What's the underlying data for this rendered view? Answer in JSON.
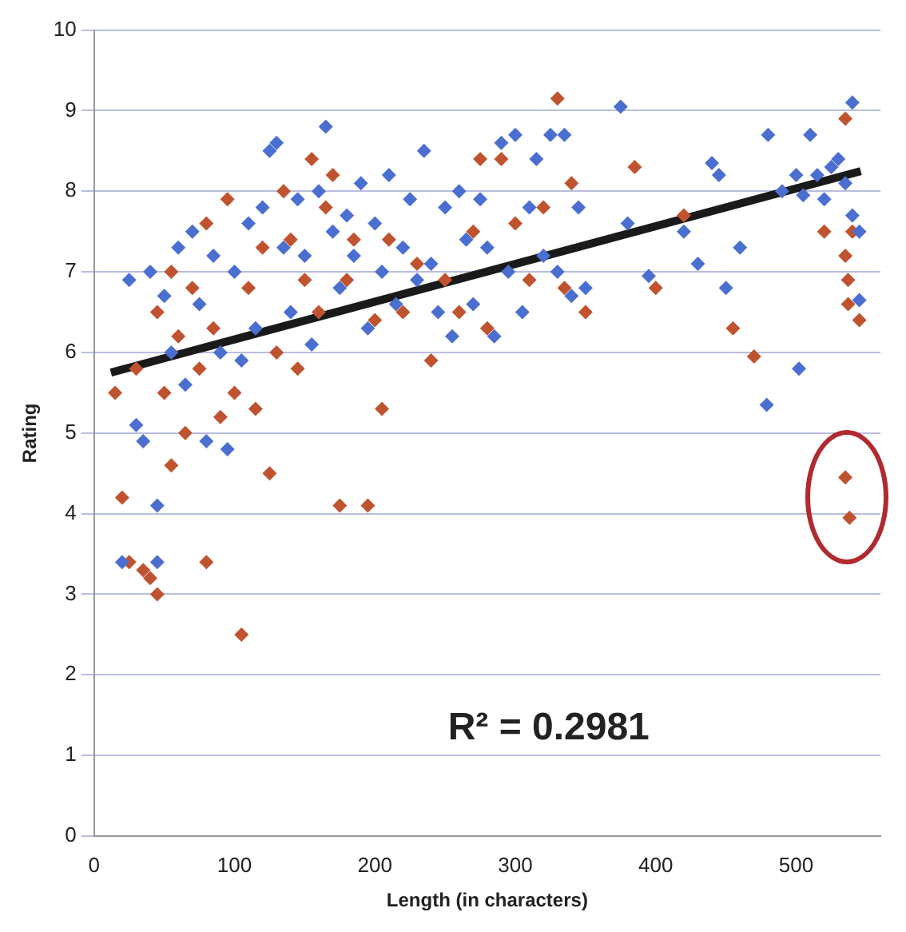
{
  "chart_data": {
    "type": "scatter",
    "xlabel": "Length (in characters)",
    "ylabel": "Rating",
    "xlim": [
      0,
      560
    ],
    "xticks": [
      0,
      100,
      200,
      300,
      400,
      500
    ],
    "ylim": [
      0,
      10
    ],
    "yticks": [
      0,
      1,
      2,
      3,
      4,
      5,
      6,
      7,
      8,
      9,
      10
    ],
    "grid": "y",
    "marker": "diamond",
    "annotations": [
      "R² = 0.2981"
    ],
    "series": [
      {
        "color": "#4a6fd0",
        "x": [
          20,
          25,
          30,
          35,
          40,
          45,
          45,
          50,
          55,
          60,
          65,
          70,
          75,
          80,
          85,
          90,
          95,
          100,
          105,
          110,
          115,
          120,
          125,
          130,
          135,
          140,
          145,
          150,
          155,
          160,
          165,
          170,
          175,
          180,
          185,
          190,
          195,
          200,
          205,
          210,
          215,
          220,
          225,
          230,
          235,
          240,
          245,
          250,
          255,
          260,
          265,
          270,
          275,
          280,
          285,
          290,
          295,
          300,
          305,
          310,
          315,
          320,
          325,
          330,
          335,
          340,
          345,
          350,
          375,
          380,
          395,
          420,
          430,
          440,
          445,
          450,
          479,
          460,
          480,
          490,
          502,
          500,
          510,
          515,
          520,
          525,
          530,
          535,
          540,
          540,
          545,
          545,
          505
        ],
        "values": [
          3.4,
          6.9,
          5.1,
          4.9,
          7.0,
          4.1,
          3.4,
          6.7,
          6.0,
          7.3,
          5.6,
          7.5,
          6.6,
          4.9,
          7.2,
          6.0,
          4.8,
          7.0,
          5.9,
          7.6,
          6.3,
          7.8,
          8.5,
          8.6,
          7.3,
          6.5,
          7.9,
          7.2,
          6.1,
          8.0,
          8.8,
          7.5,
          6.8,
          7.7,
          7.2,
          8.1,
          6.3,
          7.6,
          7.0,
          8.2,
          6.6,
          7.3,
          7.9,
          6.9,
          8.5,
          7.1,
          6.5,
          7.8,
          6.2,
          8.0,
          7.4,
          6.6,
          7.9,
          7.3,
          6.2,
          8.6,
          7.0,
          8.7,
          6.5,
          7.8,
          8.4,
          7.2,
          8.7,
          7.0,
          8.7,
          6.7,
          7.8,
          6.8,
          9.05,
          7.6,
          6.95,
          7.5,
          7.1,
          8.35,
          8.2,
          6.8,
          5.35,
          7.3,
          8.7,
          8.0,
          5.8,
          8.2,
          8.7,
          8.2,
          7.9,
          8.3,
          8.4,
          8.1,
          9.1,
          7.7,
          6.65,
          7.5,
          7.95
        ]
      },
      {
        "color": "#c0532f",
        "x": [
          15,
          20,
          25,
          30,
          35,
          40,
          45,
          45,
          50,
          55,
          55,
          60,
          65,
          70,
          75,
          80,
          80,
          85,
          90,
          95,
          100,
          105,
          110,
          115,
          120,
          125,
          130,
          135,
          140,
          145,
          150,
          155,
          160,
          165,
          170,
          175,
          180,
          185,
          195,
          200,
          205,
          210,
          220,
          230,
          240,
          250,
          260,
          270,
          275,
          280,
          290,
          300,
          310,
          320,
          330,
          335,
          340,
          350,
          385,
          400,
          420,
          455,
          470,
          520,
          535,
          535,
          537,
          537,
          540,
          545,
          535,
          538
        ],
        "values": [
          5.5,
          4.2,
          3.4,
          5.8,
          3.3,
          3.2,
          3.0,
          6.5,
          5.5,
          7.0,
          4.6,
          6.2,
          5.0,
          6.8,
          5.8,
          3.4,
          7.6,
          6.3,
          5.2,
          7.9,
          5.5,
          2.5,
          6.8,
          5.3,
          7.3,
          4.5,
          6.0,
          8.0,
          7.4,
          5.8,
          6.9,
          8.4,
          6.5,
          7.8,
          8.2,
          4.1,
          6.9,
          7.4,
          4.1,
          6.4,
          5.3,
          7.4,
          6.5,
          7.1,
          5.9,
          6.9,
          6.5,
          7.5,
          8.4,
          6.3,
          8.4,
          7.6,
          6.9,
          7.8,
          9.15,
          6.8,
          8.1,
          6.5,
          8.3,
          6.8,
          7.7,
          6.3,
          5.95,
          7.5,
          8.9,
          7.2,
          6.9,
          6.6,
          7.5,
          6.4,
          4.45,
          3.95
        ]
      },
      {
        "type": "line",
        "color": "#1a1a1a",
        "x": [
          12,
          546
        ],
        "values": [
          5.75,
          8.25
        ],
        "marker": "none"
      }
    ]
  }
}
